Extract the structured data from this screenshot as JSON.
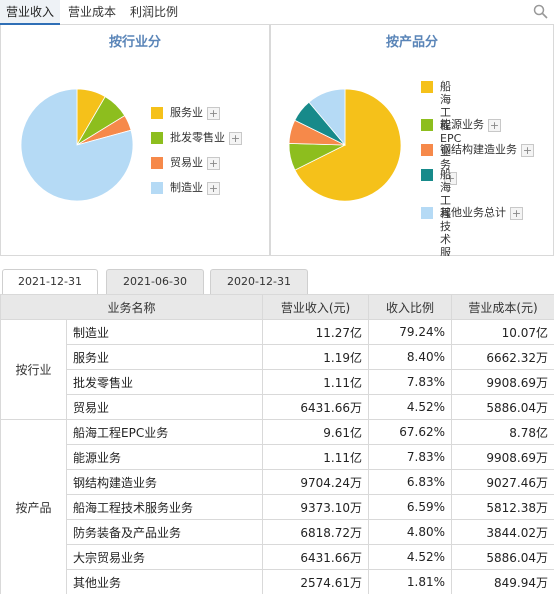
{
  "top_tabs": [
    {
      "label": "营业收入",
      "active": true
    },
    {
      "label": "营业成本",
      "active": false
    },
    {
      "label": "利润比例",
      "active": false
    }
  ],
  "panels": {
    "industry": {
      "title": "按行业分",
      "legend": [
        {
          "label": "服务业",
          "color": "#f5c11a"
        },
        {
          "label": "批发零售业",
          "color": "#8dbe1e"
        },
        {
          "label": "贸易业",
          "color": "#f6894a"
        },
        {
          "label": "制造业",
          "color": "#b5daf5"
        }
      ]
    },
    "product": {
      "title": "按产品分",
      "legend": [
        {
          "label": "船海工程EPC业务",
          "color": "#f5c11a"
        },
        {
          "label": "能源业务",
          "color": "#8dbe1e"
        },
        {
          "label": "钢结构建造业务",
          "color": "#f6894a"
        },
        {
          "label": "船海工程技术服务业务",
          "color": "#178a8a"
        },
        {
          "label": "其他业务总计",
          "color": "#b5daf5"
        }
      ]
    }
  },
  "chart_data": [
    {
      "type": "pie",
      "title": "按行业分",
      "categories": [
        "服务业",
        "批发零售业",
        "贸易业",
        "制造业"
      ],
      "values": [
        8.4,
        7.83,
        4.52,
        79.24
      ]
    },
    {
      "type": "pie",
      "title": "按产品分",
      "categories": [
        "船海工程EPC业务",
        "能源业务",
        "钢结构建造业务",
        "船海工程技术服务业务",
        "其他业务总计"
      ],
      "values": [
        67.62,
        7.83,
        6.83,
        6.59,
        11.13
      ]
    }
  ],
  "date_tabs": [
    {
      "label": "2021-12-31",
      "active": true
    },
    {
      "label": "2021-06-30",
      "active": false
    },
    {
      "label": "2020-12-31",
      "active": false
    }
  ],
  "table": {
    "headers": [
      "业务名称",
      "营业收入(元)",
      "收入比例",
      "营业成本(元)"
    ],
    "groups": [
      {
        "label": "按行业",
        "rows": [
          {
            "name": "制造业",
            "revenue": "11.27亿",
            "ratio": "79.24%",
            "cost": "10.07亿"
          },
          {
            "name": "服务业",
            "revenue": "1.19亿",
            "ratio": "8.40%",
            "cost": "6662.32万"
          },
          {
            "name": "批发零售业",
            "revenue": "1.11亿",
            "ratio": "7.83%",
            "cost": "9908.69万"
          },
          {
            "name": "贸易业",
            "revenue": "6431.66万",
            "ratio": "4.52%",
            "cost": "5886.04万"
          }
        ]
      },
      {
        "label": "按产品",
        "rows": [
          {
            "name": "船海工程EPC业务",
            "revenue": "9.61亿",
            "ratio": "67.62%",
            "cost": "8.78亿"
          },
          {
            "name": "能源业务",
            "revenue": "1.11亿",
            "ratio": "7.83%",
            "cost": "9908.69万"
          },
          {
            "name": "钢结构建造业务",
            "revenue": "9704.24万",
            "ratio": "6.83%",
            "cost": "9027.46万"
          },
          {
            "name": "船海工程技术服务业务",
            "revenue": "9373.10万",
            "ratio": "6.59%",
            "cost": "5812.38万"
          },
          {
            "name": "防务装备及产品业务",
            "revenue": "6818.72万",
            "ratio": "4.80%",
            "cost": "3844.02万"
          },
          {
            "name": "大宗贸易业务",
            "revenue": "6431.66万",
            "ratio": "4.52%",
            "cost": "5886.04万"
          },
          {
            "name": "其他业务",
            "revenue": "2574.61万",
            "ratio": "1.81%",
            "cost": "849.94万"
          }
        ]
      }
    ]
  }
}
